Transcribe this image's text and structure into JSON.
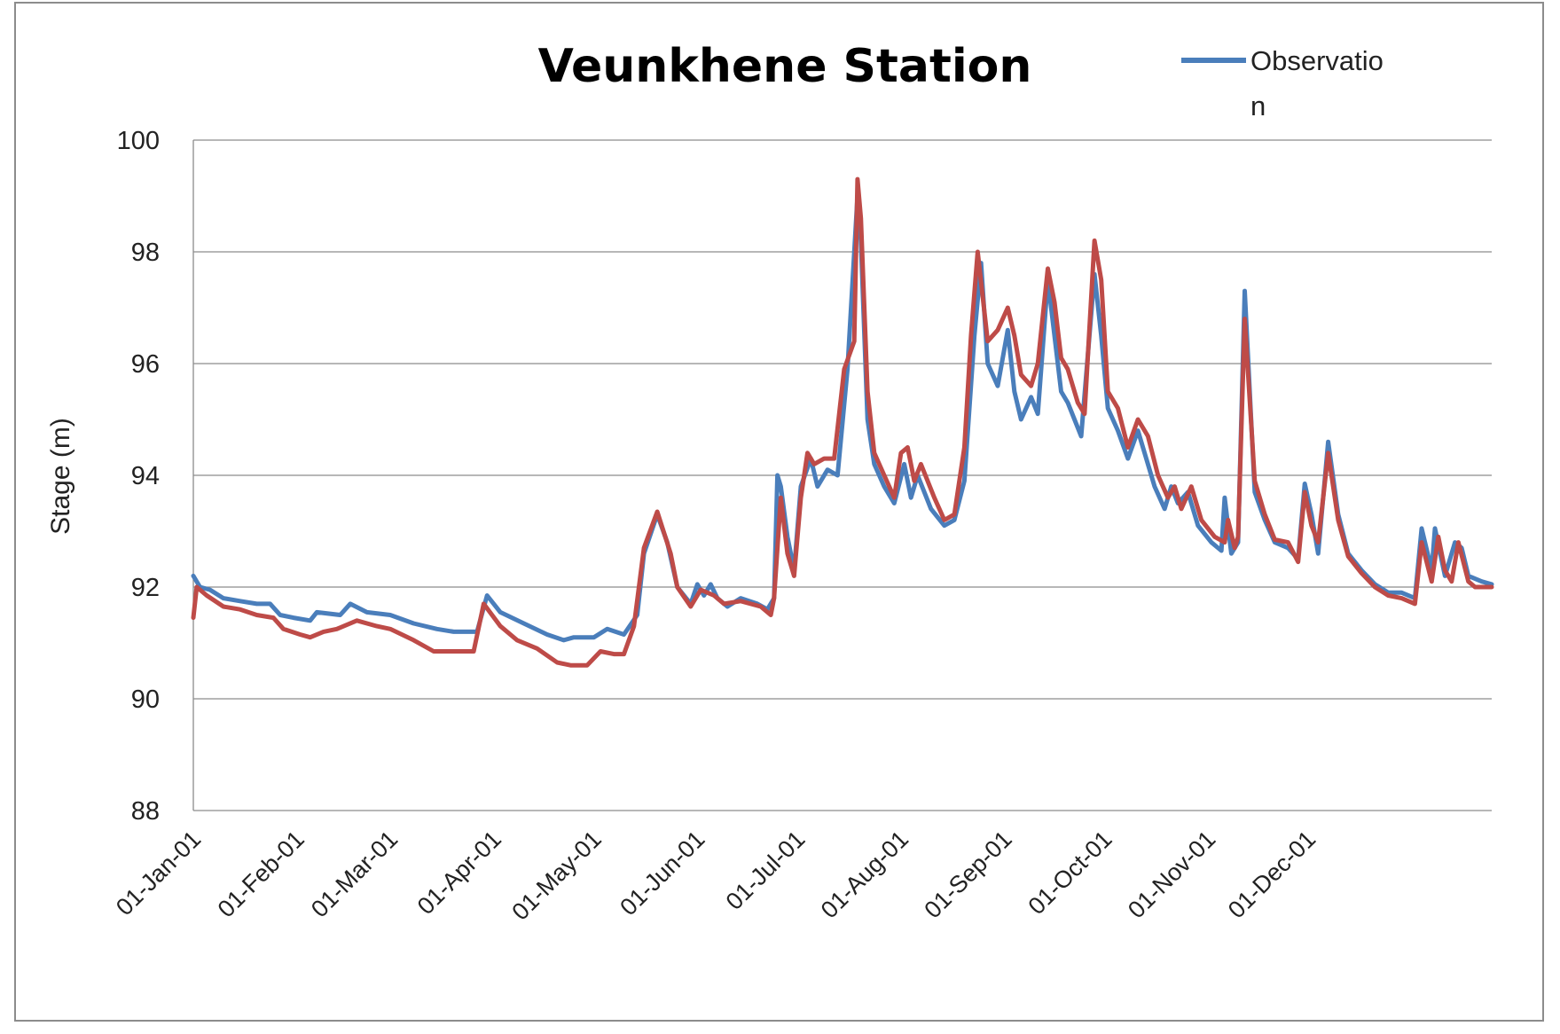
{
  "chart_data": {
    "type": "line",
    "title": "Veunkhene Station",
    "xlabel": "",
    "ylabel": "Stage (m)",
    "ylim": [
      88,
      100
    ],
    "yticks": [
      "88",
      "90",
      "92",
      "94",
      "96",
      "98",
      "100"
    ],
    "xticks": [
      "01-Jan-01",
      "01-Feb-01",
      "01-Mar-01",
      "01-Apr-01",
      "01-May-01",
      "01-Jun-01",
      "01-Jul-01",
      "01-Aug-01",
      "01-Sep-01",
      "01-Oct-01",
      "01-Nov-01",
      "01-Dec-01"
    ],
    "grid": "horizontal",
    "legend": {
      "placement": "top-right",
      "entries": [
        "Observatio\nn"
      ]
    },
    "series": [
      {
        "name": "Observation",
        "color": "#4a7ebb",
        "points": [
          [
            "2001-01-01",
            92.2
          ],
          [
            "2001-01-03",
            92.0
          ],
          [
            "2001-01-06",
            91.95
          ],
          [
            "2001-01-10",
            91.8
          ],
          [
            "2001-01-15",
            91.75
          ],
          [
            "2001-01-20",
            91.7
          ],
          [
            "2001-01-24",
            91.7
          ],
          [
            "2001-01-27",
            91.5
          ],
          [
            "2001-01-31",
            91.45
          ],
          [
            "2001-02-05",
            91.4
          ],
          [
            "2001-02-07",
            91.55
          ],
          [
            "2001-02-14",
            91.5
          ],
          [
            "2001-02-17",
            91.7
          ],
          [
            "2001-02-22",
            91.55
          ],
          [
            "2001-03-01",
            91.5
          ],
          [
            "2001-03-08",
            91.35
          ],
          [
            "2001-03-15",
            91.25
          ],
          [
            "2001-03-20",
            91.2
          ],
          [
            "2001-03-27",
            91.2
          ],
          [
            "2001-03-30",
            91.85
          ],
          [
            "2001-04-03",
            91.55
          ],
          [
            "2001-04-10",
            91.35
          ],
          [
            "2001-04-17",
            91.15
          ],
          [
            "2001-04-22",
            91.05
          ],
          [
            "2001-04-25",
            91.1
          ],
          [
            "2001-05-01",
            91.1
          ],
          [
            "2001-05-05",
            91.25
          ],
          [
            "2001-05-10",
            91.15
          ],
          [
            "2001-05-14",
            91.5
          ],
          [
            "2001-05-16",
            92.6
          ],
          [
            "2001-05-20",
            93.3
          ],
          [
            "2001-05-23",
            92.8
          ],
          [
            "2001-05-26",
            92.0
          ],
          [
            "2001-05-30",
            91.7
          ],
          [
            "2001-06-01",
            92.05
          ],
          [
            "2001-06-03",
            91.85
          ],
          [
            "2001-06-05",
            92.05
          ],
          [
            "2001-06-07",
            91.8
          ],
          [
            "2001-06-10",
            91.65
          ],
          [
            "2001-06-14",
            91.8
          ],
          [
            "2001-06-19",
            91.7
          ],
          [
            "2001-06-22",
            91.6
          ],
          [
            "2001-06-24",
            91.8
          ],
          [
            "2001-06-25",
            94.0
          ],
          [
            "2001-06-26",
            93.8
          ],
          [
            "2001-06-28",
            92.9
          ],
          [
            "2001-06-30",
            92.3
          ],
          [
            "2001-07-02",
            93.8
          ],
          [
            "2001-07-05",
            94.3
          ],
          [
            "2001-07-07",
            93.8
          ],
          [
            "2001-07-10",
            94.1
          ],
          [
            "2001-07-13",
            94.0
          ],
          [
            "2001-07-16",
            95.9
          ],
          [
            "2001-07-19",
            99.0
          ],
          [
            "2001-07-20",
            98.2
          ],
          [
            "2001-07-22",
            95.0
          ],
          [
            "2001-07-24",
            94.2
          ],
          [
            "2001-07-27",
            93.8
          ],
          [
            "2001-07-30",
            93.5
          ],
          [
            "2001-08-02",
            94.2
          ],
          [
            "2001-08-04",
            93.6
          ],
          [
            "2001-08-06",
            94.0
          ],
          [
            "2001-08-10",
            93.4
          ],
          [
            "2001-08-14",
            93.1
          ],
          [
            "2001-08-17",
            93.2
          ],
          [
            "2001-08-20",
            93.9
          ],
          [
            "2001-08-23",
            96.5
          ],
          [
            "2001-08-25",
            97.8
          ],
          [
            "2001-08-27",
            96.0
          ],
          [
            "2001-08-30",
            95.6
          ],
          [
            "2001-09-02",
            96.6
          ],
          [
            "2001-09-04",
            95.5
          ],
          [
            "2001-09-06",
            95.0
          ],
          [
            "2001-09-09",
            95.4
          ],
          [
            "2001-09-11",
            95.1
          ],
          [
            "2001-09-14",
            97.5
          ],
          [
            "2001-09-16",
            96.5
          ],
          [
            "2001-09-18",
            95.5
          ],
          [
            "2001-09-20",
            95.3
          ],
          [
            "2001-09-24",
            94.7
          ],
          [
            "2001-09-28",
            97.6
          ],
          [
            "2001-09-30",
            96.5
          ],
          [
            "2001-10-02",
            95.2
          ],
          [
            "2001-10-05",
            94.8
          ],
          [
            "2001-10-08",
            94.3
          ],
          [
            "2001-10-11",
            94.8
          ],
          [
            "2001-10-13",
            94.4
          ],
          [
            "2001-10-16",
            93.8
          ],
          [
            "2001-10-19",
            93.4
          ],
          [
            "2001-10-21",
            93.8
          ],
          [
            "2001-10-23",
            93.5
          ],
          [
            "2001-10-26",
            93.7
          ],
          [
            "2001-10-29",
            93.1
          ],
          [
            "2001-11-02",
            92.8
          ],
          [
            "2001-11-05",
            92.65
          ],
          [
            "2001-11-06",
            93.6
          ],
          [
            "2001-11-08",
            92.6
          ],
          [
            "2001-11-10",
            92.8
          ],
          [
            "2001-11-12",
            97.3
          ],
          [
            "2001-11-15",
            93.7
          ],
          [
            "2001-11-18",
            93.2
          ],
          [
            "2001-11-21",
            92.8
          ],
          [
            "2001-11-25",
            92.7
          ],
          [
            "2001-11-28",
            92.5
          ],
          [
            "2001-11-30",
            93.85
          ],
          [
            "2001-12-02",
            93.3
          ],
          [
            "2001-12-04",
            92.6
          ],
          [
            "2001-12-07",
            94.6
          ],
          [
            "2001-12-10",
            93.3
          ],
          [
            "2001-12-13",
            92.6
          ],
          [
            "2001-12-17",
            92.3
          ],
          [
            "2001-12-21",
            92.05
          ],
          [
            "2001-12-25",
            91.9
          ],
          [
            "2001-12-29",
            91.9
          ],
          [
            "2002-01-02",
            91.8
          ],
          [
            "2002-01-04",
            93.05
          ],
          [
            "2002-01-07",
            92.3
          ],
          [
            "2002-01-08",
            93.05
          ],
          [
            "2002-01-11",
            92.2
          ],
          [
            "2002-01-14",
            92.8
          ],
          [
            "2002-01-16",
            92.7
          ],
          [
            "2002-01-18",
            92.2
          ],
          [
            "2002-01-22",
            92.1
          ],
          [
            "2002-01-25",
            92.05
          ]
        ]
      },
      {
        "name": "",
        "color": "#be4b48",
        "points": [
          [
            "2001-01-01",
            91.45
          ],
          [
            "2001-01-02",
            92.0
          ],
          [
            "2001-01-05",
            91.85
          ],
          [
            "2001-01-10",
            91.65
          ],
          [
            "2001-01-15",
            91.6
          ],
          [
            "2001-01-20",
            91.5
          ],
          [
            "2001-01-25",
            91.45
          ],
          [
            "2001-01-28",
            91.25
          ],
          [
            "2001-02-02",
            91.15
          ],
          [
            "2001-02-05",
            91.1
          ],
          [
            "2001-02-09",
            91.2
          ],
          [
            "2001-02-13",
            91.25
          ],
          [
            "2001-02-19",
            91.4
          ],
          [
            "2001-02-25",
            91.3
          ],
          [
            "2001-03-01",
            91.25
          ],
          [
            "2001-03-08",
            91.05
          ],
          [
            "2001-03-14",
            90.85
          ],
          [
            "2001-03-20",
            90.85
          ],
          [
            "2001-03-26",
            90.85
          ],
          [
            "2001-03-29",
            91.7
          ],
          [
            "2001-04-03",
            91.3
          ],
          [
            "2001-04-08",
            91.05
          ],
          [
            "2001-04-14",
            90.9
          ],
          [
            "2001-04-20",
            90.65
          ],
          [
            "2001-04-24",
            90.6
          ],
          [
            "2001-04-29",
            90.6
          ],
          [
            "2001-05-03",
            90.85
          ],
          [
            "2001-05-07",
            90.8
          ],
          [
            "2001-05-10",
            90.8
          ],
          [
            "2001-05-13",
            91.3
          ],
          [
            "2001-05-16",
            92.7
          ],
          [
            "2001-05-20",
            93.35
          ],
          [
            "2001-05-24",
            92.6
          ],
          [
            "2001-05-26",
            92.0
          ],
          [
            "2001-05-30",
            91.65
          ],
          [
            "2001-06-02",
            91.95
          ],
          [
            "2001-06-06",
            91.85
          ],
          [
            "2001-06-09",
            91.7
          ],
          [
            "2001-06-14",
            91.75
          ],
          [
            "2001-06-20",
            91.65
          ],
          [
            "2001-06-23",
            91.5
          ],
          [
            "2001-06-24",
            91.8
          ],
          [
            "2001-06-26",
            93.6
          ],
          [
            "2001-06-28",
            92.6
          ],
          [
            "2001-06-30",
            92.2
          ],
          [
            "2001-07-02",
            93.6
          ],
          [
            "2001-07-04",
            94.4
          ],
          [
            "2001-07-06",
            94.2
          ],
          [
            "2001-07-09",
            94.3
          ],
          [
            "2001-07-12",
            94.3
          ],
          [
            "2001-07-15",
            95.9
          ],
          [
            "2001-07-18",
            96.4
          ],
          [
            "2001-07-19",
            99.3
          ],
          [
            "2001-07-20",
            98.6
          ],
          [
            "2001-07-22",
            95.5
          ],
          [
            "2001-07-24",
            94.4
          ],
          [
            "2001-07-27",
            94.0
          ],
          [
            "2001-07-30",
            93.6
          ],
          [
            "2001-08-01",
            94.4
          ],
          [
            "2001-08-03",
            94.5
          ],
          [
            "2001-08-05",
            93.9
          ],
          [
            "2001-08-07",
            94.2
          ],
          [
            "2001-08-11",
            93.6
          ],
          [
            "2001-08-14",
            93.2
          ],
          [
            "2001-08-17",
            93.3
          ],
          [
            "2001-08-20",
            94.5
          ],
          [
            "2001-08-22",
            96.5
          ],
          [
            "2001-08-24",
            98.0
          ],
          [
            "2001-08-27",
            96.4
          ],
          [
            "2001-08-30",
            96.6
          ],
          [
            "2001-09-02",
            97.0
          ],
          [
            "2001-09-04",
            96.5
          ],
          [
            "2001-09-06",
            95.8
          ],
          [
            "2001-09-09",
            95.6
          ],
          [
            "2001-09-11",
            96.0
          ],
          [
            "2001-09-14",
            97.7
          ],
          [
            "2001-09-16",
            97.1
          ],
          [
            "2001-09-18",
            96.1
          ],
          [
            "2001-09-20",
            95.9
          ],
          [
            "2001-09-23",
            95.3
          ],
          [
            "2001-09-25",
            95.1
          ],
          [
            "2001-09-28",
            98.2
          ],
          [
            "2001-09-30",
            97.5
          ],
          [
            "2001-10-02",
            95.5
          ],
          [
            "2001-10-05",
            95.2
          ],
          [
            "2001-10-08",
            94.5
          ],
          [
            "2001-10-11",
            95.0
          ],
          [
            "2001-10-14",
            94.7
          ],
          [
            "2001-10-17",
            94.0
          ],
          [
            "2001-10-20",
            93.6
          ],
          [
            "2001-10-22",
            93.8
          ],
          [
            "2001-10-24",
            93.4
          ],
          [
            "2001-10-27",
            93.8
          ],
          [
            "2001-10-30",
            93.2
          ],
          [
            "2001-11-03",
            92.9
          ],
          [
            "2001-11-06",
            92.8
          ],
          [
            "2001-11-07",
            93.2
          ],
          [
            "2001-11-09",
            92.7
          ],
          [
            "2001-11-10",
            92.9
          ],
          [
            "2001-11-12",
            96.8
          ],
          [
            "2001-11-15",
            93.9
          ],
          [
            "2001-11-18",
            93.3
          ],
          [
            "2001-11-21",
            92.85
          ],
          [
            "2001-11-25",
            92.8
          ],
          [
            "2001-11-28",
            92.45
          ],
          [
            "2001-11-30",
            93.7
          ],
          [
            "2001-12-02",
            93.1
          ],
          [
            "2001-12-04",
            92.8
          ],
          [
            "2001-12-07",
            94.4
          ],
          [
            "2001-12-10",
            93.2
          ],
          [
            "2001-12-13",
            92.55
          ],
          [
            "2001-12-17",
            92.25
          ],
          [
            "2001-12-21",
            92.0
          ],
          [
            "2001-12-25",
            91.85
          ],
          [
            "2001-12-29",
            91.8
          ],
          [
            "2002-01-02",
            91.7
          ],
          [
            "2002-01-04",
            92.8
          ],
          [
            "2002-01-07",
            92.1
          ],
          [
            "2002-01-09",
            92.9
          ],
          [
            "2002-01-11",
            92.3
          ],
          [
            "2002-01-13",
            92.1
          ],
          [
            "2002-01-15",
            92.8
          ],
          [
            "2002-01-18",
            92.1
          ],
          [
            "2002-01-20",
            92.0
          ],
          [
            "2002-01-25",
            92.0
          ]
        ]
      }
    ]
  }
}
